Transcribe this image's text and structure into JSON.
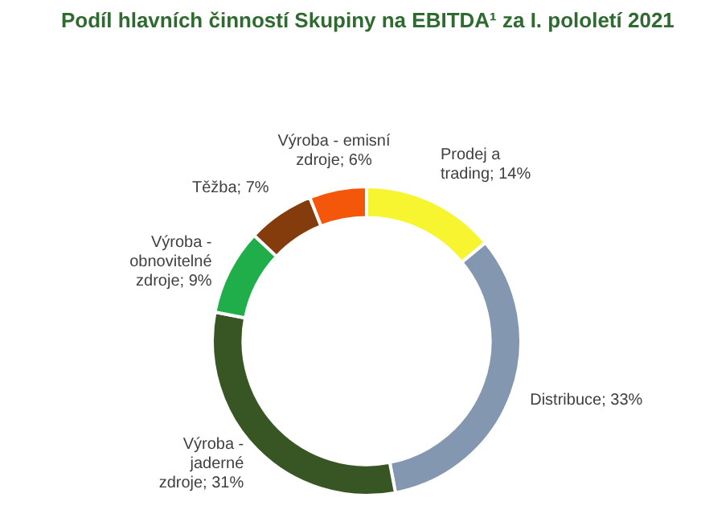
{
  "chart_data": {
    "type": "donut",
    "title": "Podíl hlavních činností Skupiny na EBITDA¹ za I. pololetí 2021",
    "categories": [
      "Prodej a trading",
      "Distribuce",
      "Výroba - jaderné zdroje",
      "Výroba - obnovitelné zdroje",
      "Těžba",
      "Výroba - emisní zdroje"
    ],
    "values": [
      14,
      33,
      31,
      9,
      7,
      6
    ],
    "colors": [
      "#f7f530",
      "#8497b0",
      "#375623",
      "#1fae4a",
      "#843c0c",
      "#f4560a"
    ],
    "value_labels": [
      "14%",
      "33%",
      "31%",
      "9%",
      "7%",
      "6%"
    ]
  }
}
